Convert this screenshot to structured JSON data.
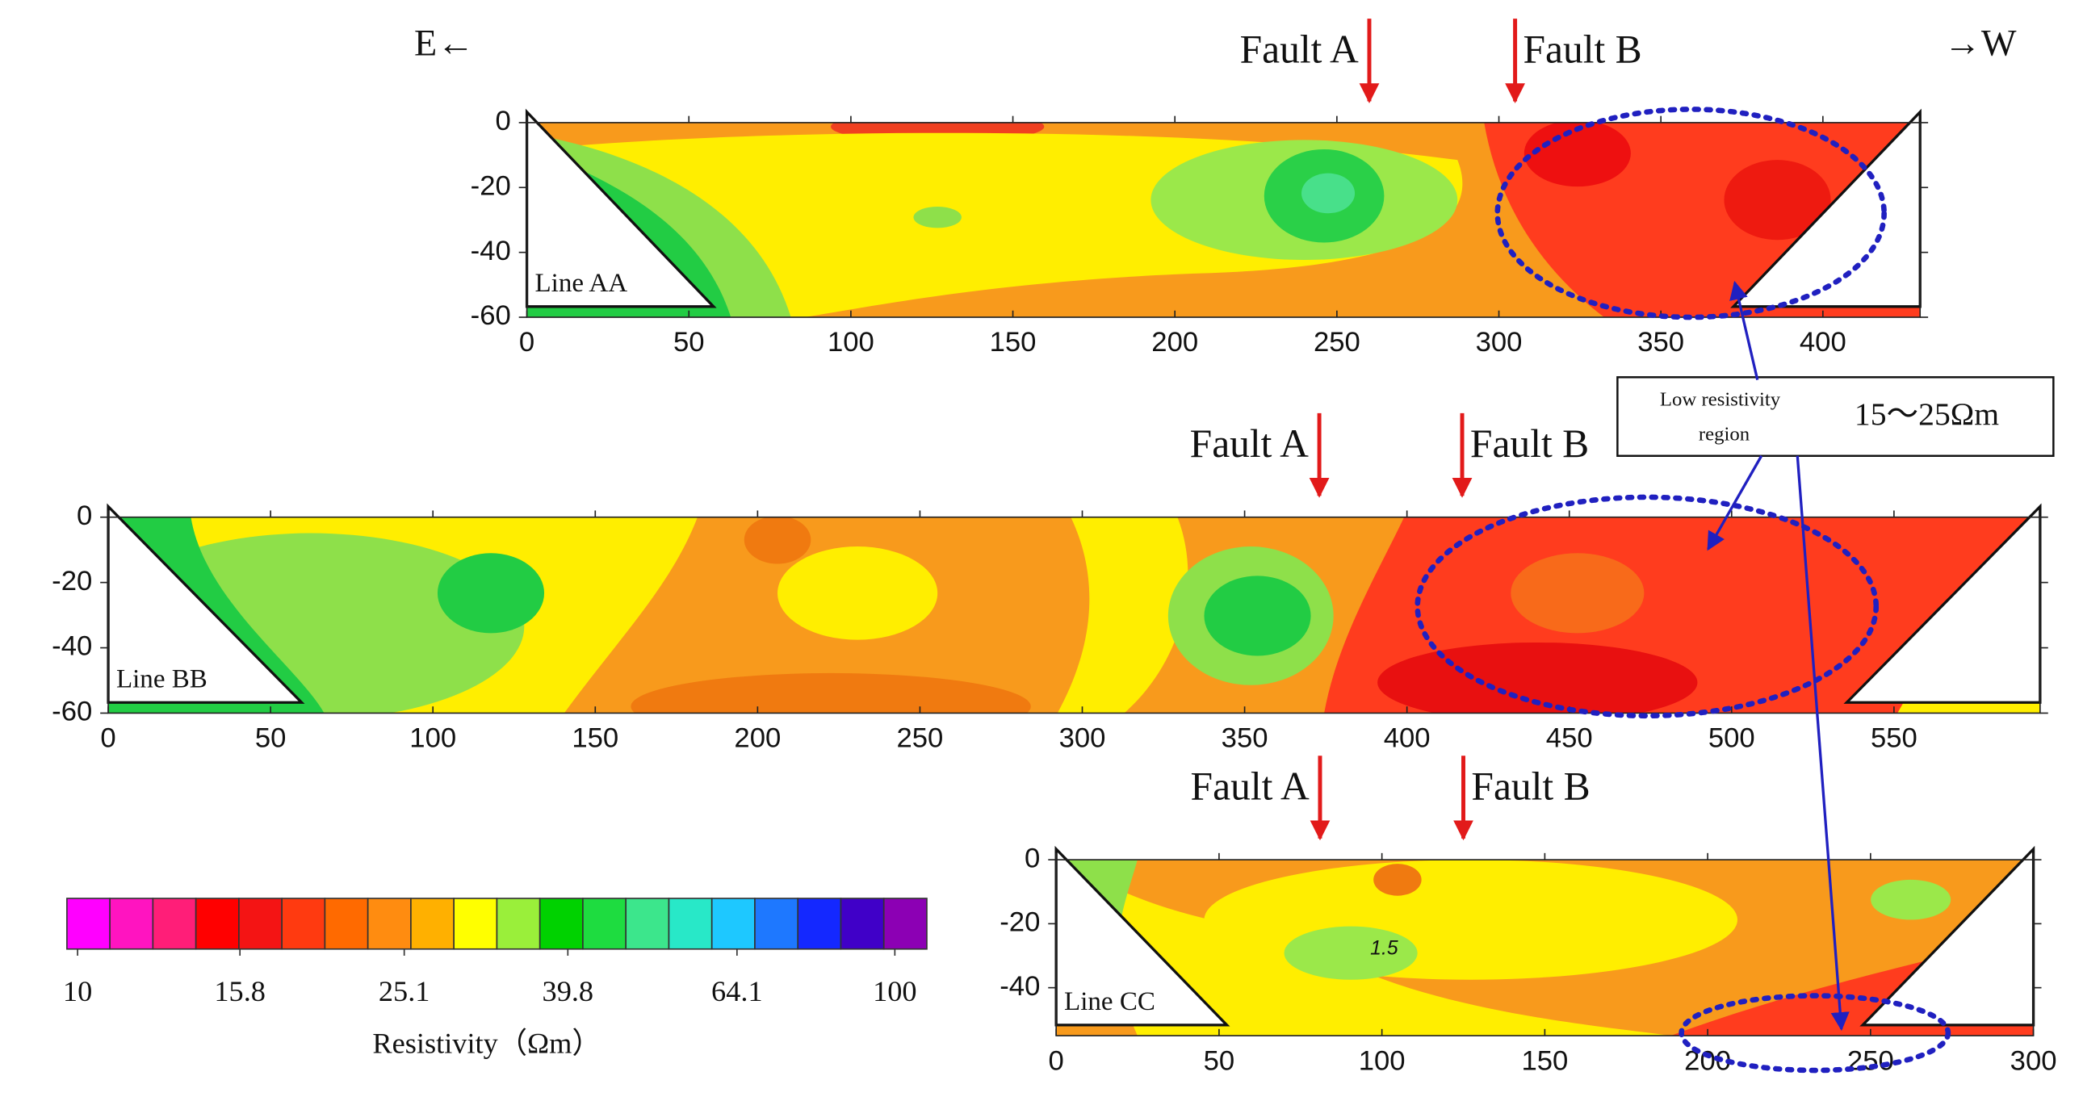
{
  "chart_data": [
    {
      "type": "contour",
      "label": "Line AA",
      "xlim": [
        0,
        430
      ],
      "ylim": [
        -60,
        0
      ],
      "xticks": [
        0,
        50,
        100,
        150,
        200,
        250,
        300,
        350,
        400
      ],
      "yticks": [
        0,
        -20,
        -40,
        -60
      ],
      "faults": [
        {
          "label": "Fault A",
          "x": 260
        },
        {
          "label": "Fault B",
          "x": 305
        }
      ]
    },
    {
      "type": "contour",
      "label": "Line BB",
      "xlim": [
        0,
        595
      ],
      "ylim": [
        -60,
        0
      ],
      "xticks": [
        0,
        50,
        100,
        150,
        200,
        250,
        300,
        350,
        400,
        450,
        500,
        550
      ],
      "yticks": [
        0,
        -20,
        -40,
        -60
      ],
      "faults": [
        {
          "label": "Fault A",
          "x": 373
        },
        {
          "label": "Fault B",
          "x": 417
        }
      ]
    },
    {
      "type": "contour",
      "label": "Line CC",
      "xlim": [
        0,
        300
      ],
      "ylim": [
        -55,
        0
      ],
      "xticks": [
        0,
        50,
        100,
        150,
        200,
        250,
        300
      ],
      "yticks": [
        0,
        -20,
        -40
      ],
      "faults": [
        {
          "label": "Fault A",
          "x": 81
        },
        {
          "label": "Fault B",
          "x": 125
        }
      ],
      "contour_label": 1.5
    }
  ],
  "colorbar": {
    "colors": [
      "#ff00ff",
      "#ff14c0",
      "#ff1e78",
      "#ff0000",
      "#f41414",
      "#ff3a10",
      "#ff6a00",
      "#ff8c10",
      "#ffb000",
      "#ffff00",
      "#9aef3a",
      "#00d200",
      "#1edc40",
      "#3ce68c",
      "#28e8c8",
      "#1ec8ff",
      "#1e78ff",
      "#1428ff",
      "#4000c8",
      "#8c00b4"
    ],
    "ticks": [
      10,
      15.8,
      25.1,
      39.8,
      64.1,
      100
    ],
    "lim": [
      10,
      100
    ],
    "scale": "log",
    "label": "Resistivity（Ωm）"
  },
  "directions": {
    "east": "E←",
    "west": "→W"
  },
  "annotation": {
    "lines": [
      "Low resistivity",
      "region"
    ],
    "range": "15～25Ωm"
  }
}
